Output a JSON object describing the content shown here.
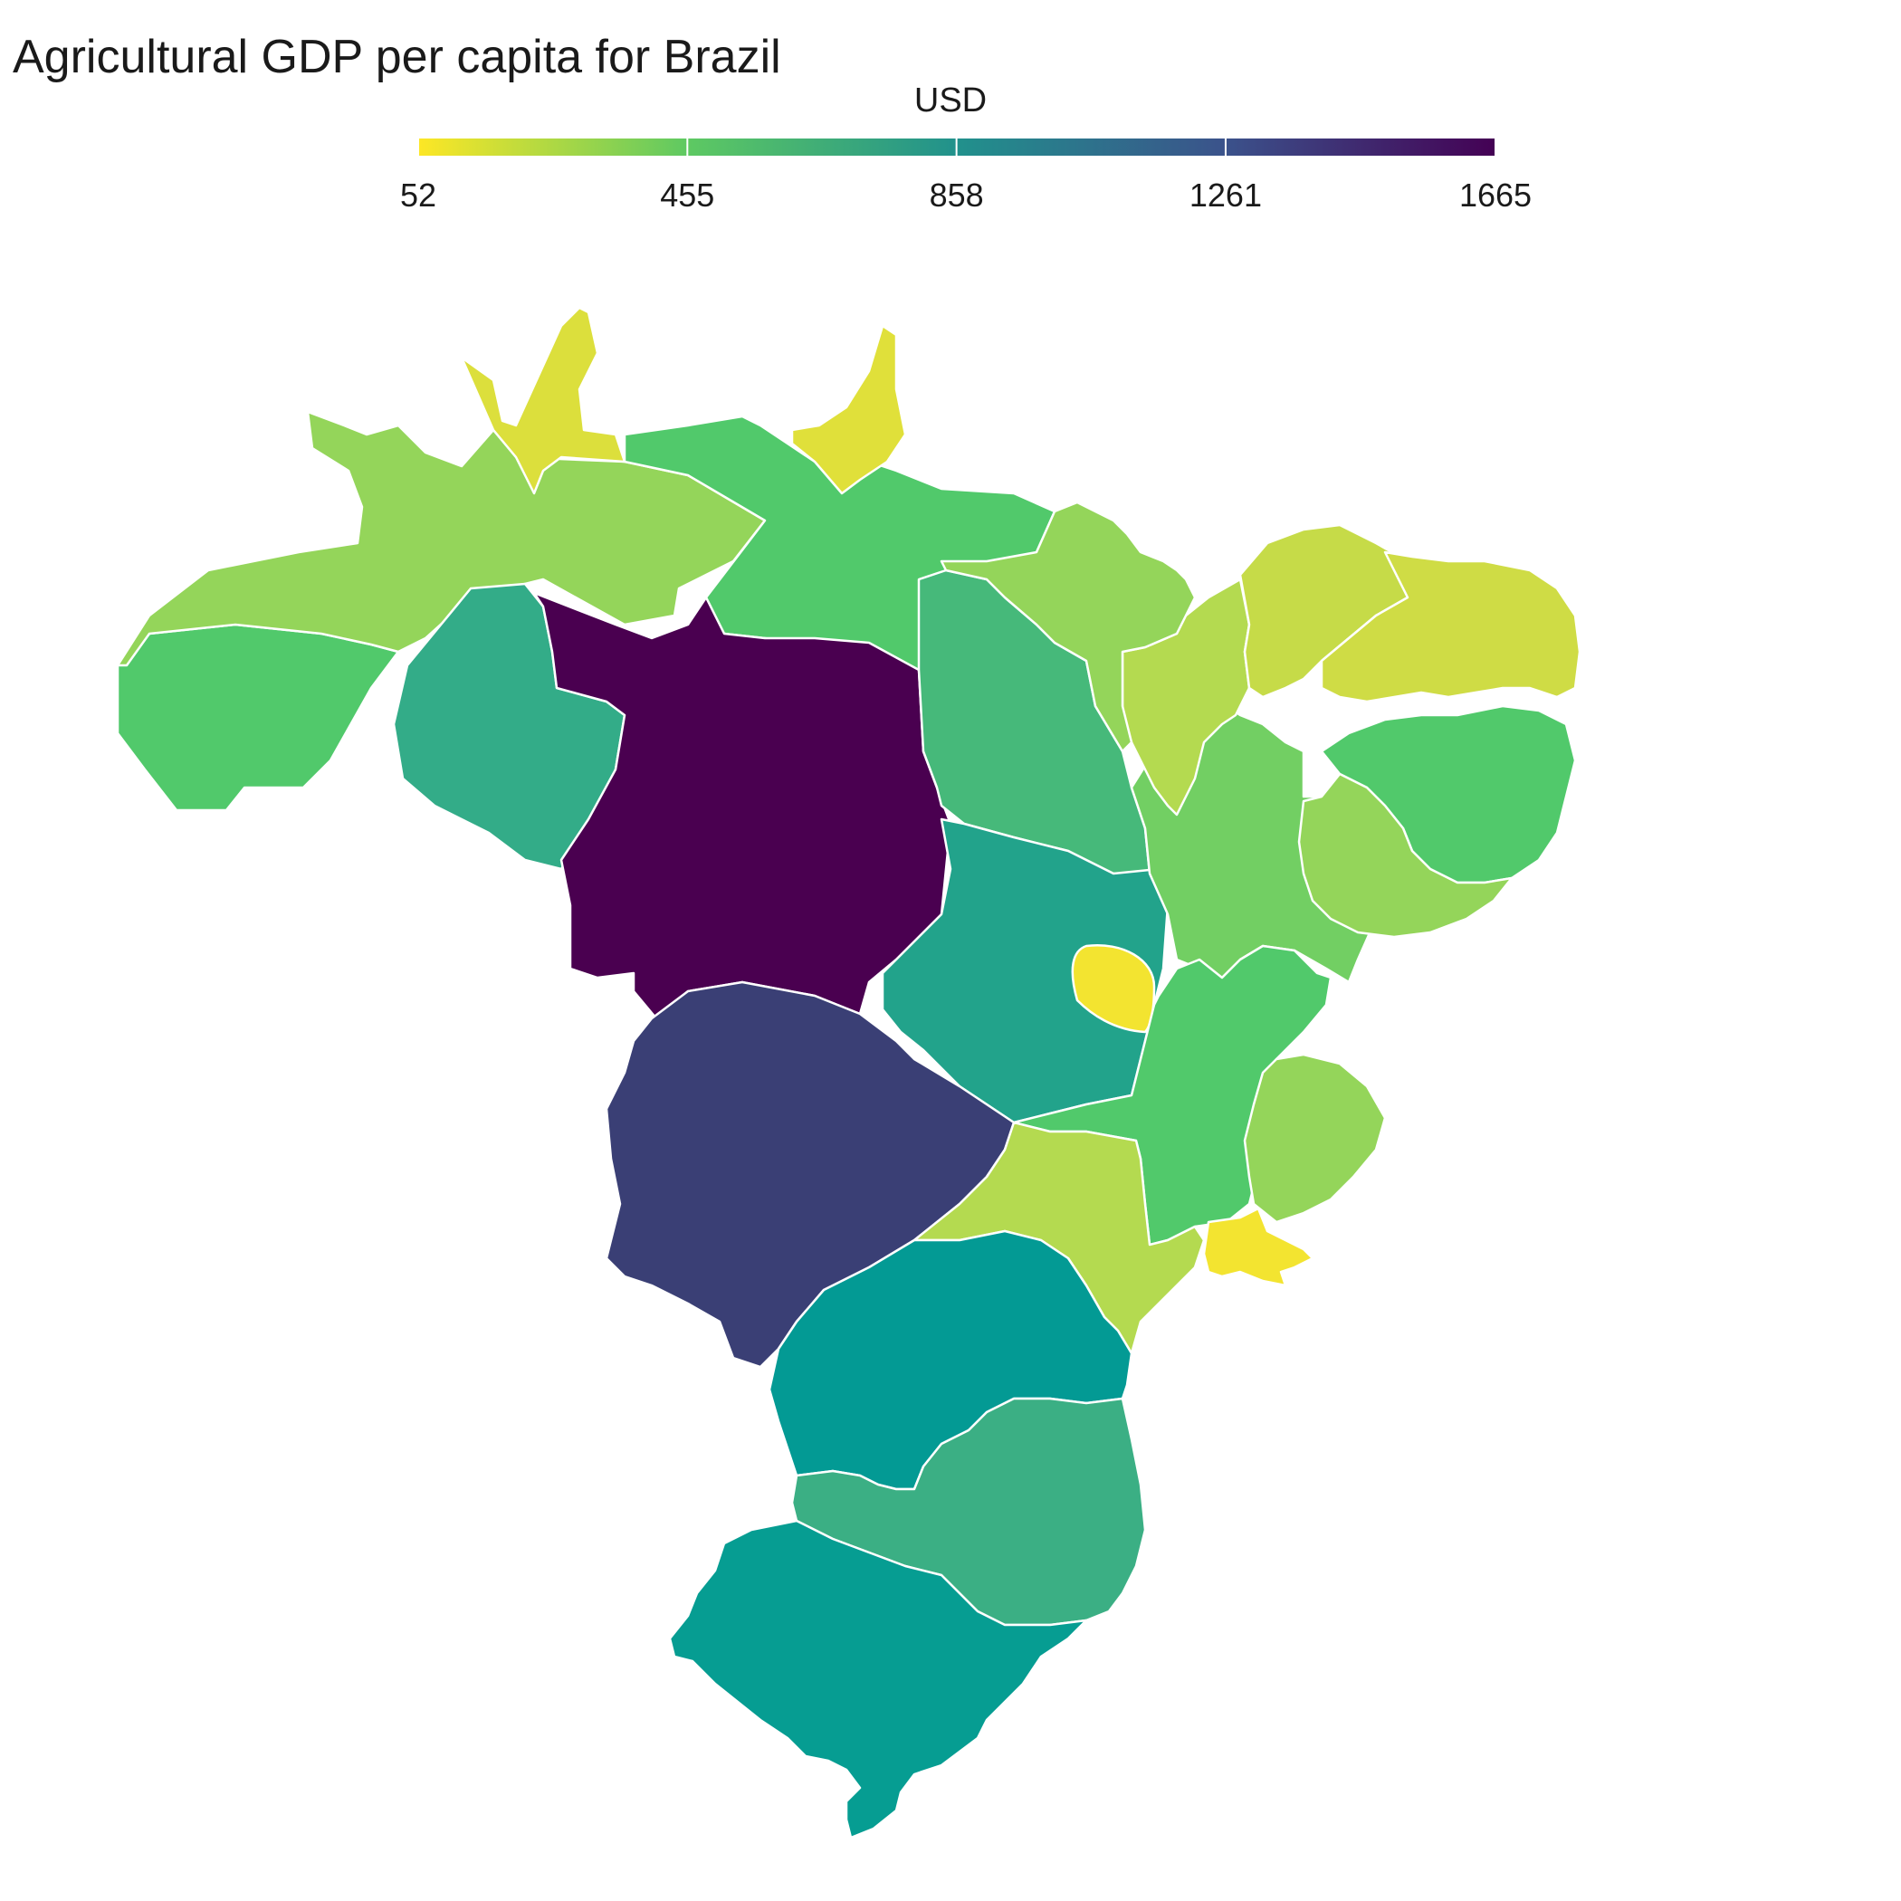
{
  "title": "Agricultural GDP per capita for Brazil",
  "legend": {
    "title": "USD",
    "min": 52,
    "max": 1665,
    "ticks": [
      52,
      455,
      858,
      1261,
      1665
    ],
    "tick_labels": [
      "52",
      "455",
      "858",
      "1261",
      "1665"
    ],
    "colormap": [
      "#fde725",
      "#5ec962",
      "#21918c",
      "#3b528b",
      "#440154"
    ]
  },
  "chart_data": {
    "type": "choropleth",
    "title": "Agricultural GDP per capita for Brazil",
    "legend_title": "USD",
    "legend_position": "top",
    "value_range": [
      52,
      1665
    ],
    "regions": [
      {
        "name": "",
        "value": 1620,
        "color": "#4a0050"
      },
      {
        "name": "",
        "value": 1430,
        "color": "#3a3f75"
      },
      {
        "name": "",
        "value": 1000,
        "color": "#039a94"
      },
      {
        "name": "",
        "value": 960,
        "color": "#069d92"
      },
      {
        "name": "",
        "value": 890,
        "color": "#22a38b"
      },
      {
        "name": "",
        "value": 780,
        "color": "#3baf84"
      },
      {
        "name": "",
        "value": 760,
        "color": "#33ac88"
      },
      {
        "name": "",
        "value": 650,
        "color": "#46b97a"
      },
      {
        "name": "",
        "value": 520,
        "color": "#51c96b"
      },
      {
        "name": "",
        "value": 480,
        "color": "#72cf63"
      },
      {
        "name": "",
        "value": 330,
        "color": "#94d55a"
      },
      {
        "name": "",
        "value": 240,
        "color": "#b4da50"
      },
      {
        "name": "",
        "value": 170,
        "color": "#c6db48"
      },
      {
        "name": "",
        "value": 110,
        "color": "#dcdf3c"
      },
      {
        "name": "",
        "value": 60,
        "color": "#f3e430"
      }
    ]
  }
}
